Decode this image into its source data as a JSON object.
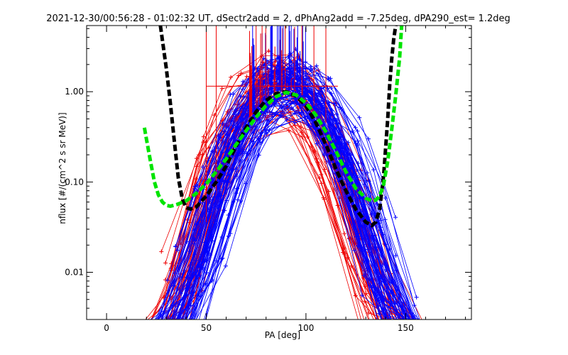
{
  "chart_data": {
    "type": "line",
    "title": "2021-12-30/00:56:28 - 01:02:32 UT, dSectr2add = 2, dPhAng2add = -7.25deg, dPA290_est=   1.2deg",
    "xlabel": "PA [deg]",
    "ylabel": "nflux [#/(cm^2 s sr MeV)]",
    "xlim": [
      -10,
      183
    ],
    "ylim": [
      0.003,
      5.4
    ],
    "yscale": "log",
    "xticks": [
      0,
      50,
      100,
      150
    ],
    "xtick_labels": [
      "0",
      "50",
      "100",
      "150"
    ],
    "yticks": [
      0.01,
      0.1,
      1.0
    ],
    "ytick_labels": [
      "0.01",
      "0.10",
      "1.00"
    ],
    "grid": false,
    "legend": "none",
    "series": [
      {
        "color": "#000000",
        "style": "thick-dashed",
        "x": [
          27,
          30,
          32,
          34,
          36,
          38,
          40,
          42,
          45,
          50,
          55,
          60,
          65,
          70,
          75,
          80,
          85,
          90,
          95,
          100,
          105,
          110,
          115,
          120,
          125,
          130,
          133,
          135,
          137,
          139,
          141,
          142,
          143,
          144,
          145
        ],
        "y": [
          5.4,
          1.8,
          0.75,
          0.28,
          0.11,
          0.065,
          0.052,
          0.05,
          0.053,
          0.07,
          0.1,
          0.15,
          0.25,
          0.4,
          0.6,
          0.8,
          0.95,
          1.0,
          0.9,
          0.7,
          0.45,
          0.26,
          0.14,
          0.08,
          0.05,
          0.036,
          0.033,
          0.036,
          0.05,
          0.12,
          0.5,
          1.2,
          2.3,
          3.8,
          5.4
        ]
      },
      {
        "color": "#00e400",
        "style": "thick-dashed",
        "x": [
          19,
          20,
          22,
          24,
          26,
          28,
          30,
          32,
          35,
          40,
          45,
          50,
          55,
          60,
          65,
          70,
          75,
          80,
          85,
          90,
          95,
          100,
          105,
          110,
          115,
          120,
          125,
          130,
          133,
          135,
          137,
          139,
          141,
          143,
          145,
          147,
          148
        ],
        "y": [
          0.4,
          0.3,
          0.17,
          0.1,
          0.072,
          0.06,
          0.055,
          0.054,
          0.056,
          0.062,
          0.075,
          0.095,
          0.13,
          0.18,
          0.26,
          0.37,
          0.52,
          0.7,
          0.88,
          0.98,
          0.92,
          0.75,
          0.55,
          0.36,
          0.22,
          0.13,
          0.085,
          0.066,
          0.062,
          0.063,
          0.07,
          0.095,
          0.17,
          0.38,
          0.9,
          2.4,
          5.4
        ]
      }
    ],
    "red_color": "#ee0000",
    "blue_color": "#0000ff"
  }
}
